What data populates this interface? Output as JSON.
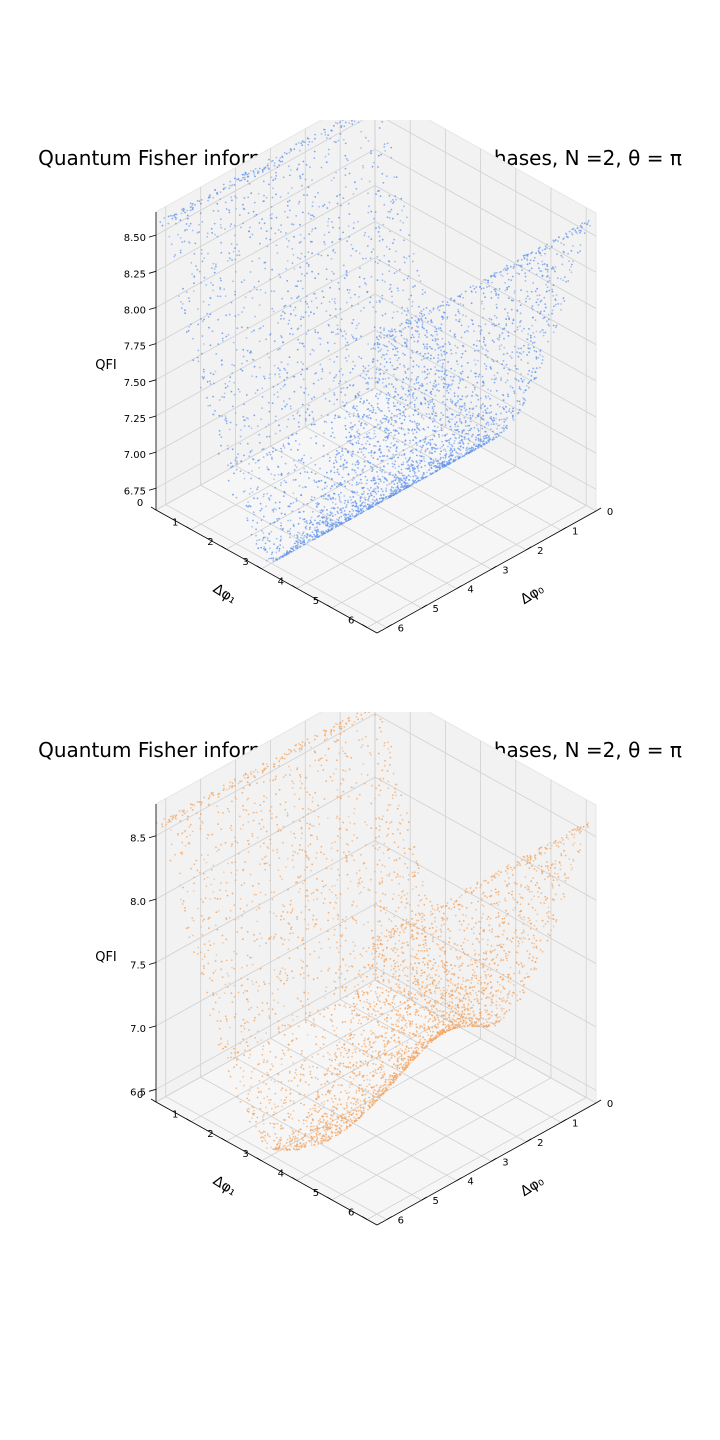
{
  "chart_data": [
    {
      "type": "scatter3d",
      "title": "Quantum Fisher information with respect to phases, N =2, θ = π",
      "xlabel": "Δφ₀",
      "ylabel": "Δφ₁",
      "zlabel": "QFI",
      "xlim": [
        0,
        6.28
      ],
      "ylim": [
        0,
        6.28
      ],
      "zlim": [
        6.6,
        8.66
      ],
      "x_ticks": [
        "0",
        "1",
        "2",
        "3",
        "4",
        "5",
        "6"
      ],
      "y_ticks": [
        "0",
        "1",
        "2",
        "3",
        "4",
        "5",
        "6"
      ],
      "z_ticks": [
        "6.75",
        "7.00",
        "7.25",
        "7.50",
        "7.75",
        "8.00",
        "8.25",
        "8.50"
      ],
      "z_tick_values": [
        6.75,
        7.0,
        7.25,
        7.5,
        7.75,
        8.0,
        8.25,
        8.5
      ],
      "color": "#6495ed",
      "surface": {
        "baseline": 6.67,
        "amplitude": 1.92,
        "valley_at_dphi1": 3.14,
        "valley_halfwidth": 1.2,
        "modulation_with_dphi0": 0.0
      },
      "grid": true
    },
    {
      "type": "scatter3d",
      "title": "Quantum Fisher information with respect to phases, N =2, θ = π",
      "xlabel": "Δφ₀",
      "ylabel": "Δφ₁",
      "zlabel": "QFI",
      "xlim": [
        0,
        6.28
      ],
      "ylim": [
        0,
        6.28
      ],
      "zlim": [
        6.4,
        8.75
      ],
      "x_ticks": [
        "0",
        "1",
        "2",
        "3",
        "4",
        "5",
        "6"
      ],
      "y_ticks": [
        "0",
        "1",
        "2",
        "3",
        "4",
        "5",
        "6"
      ],
      "z_ticks": [
        "6.5",
        "7.0",
        "7.5",
        "8.0",
        "8.5"
      ],
      "z_tick_values": [
        6.5,
        7.0,
        7.5,
        8.0,
        8.5
      ],
      "color": "#f4a460",
      "surface": {
        "baseline": 6.52,
        "amplitude": 2.08,
        "valley_at_dphi1": 3.14,
        "valley_halfwidth": 1.2,
        "modulation_with_dphi0": 0.35
      },
      "grid": true
    }
  ]
}
